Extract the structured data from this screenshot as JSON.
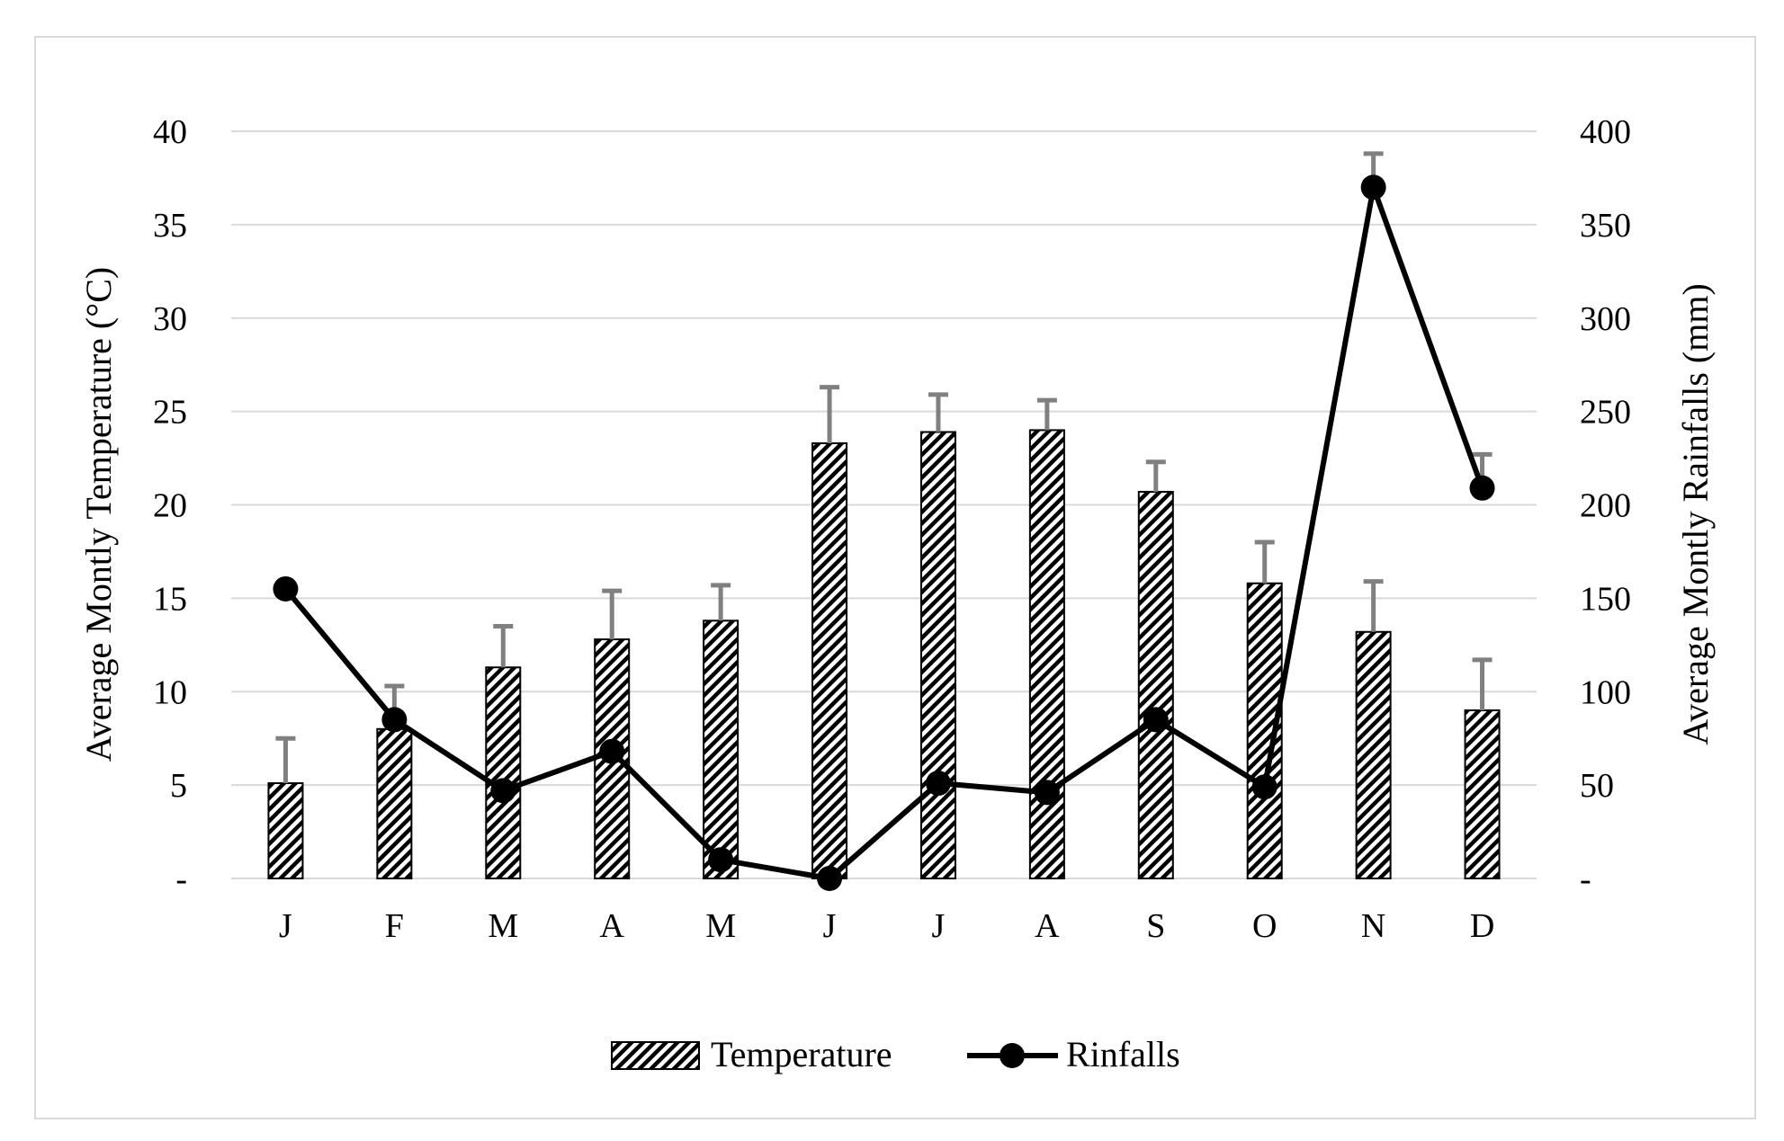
{
  "chart_data": {
    "type": "bar",
    "title": "",
    "categories": [
      "J",
      "F",
      "M",
      "A",
      "M",
      "J",
      "J",
      "A",
      "S",
      "O",
      "N",
      "D"
    ],
    "series": [
      {
        "name": "Temperature",
        "kind": "bar",
        "axis": "left",
        "values": [
          5.1,
          8.0,
          11.3,
          12.8,
          13.8,
          23.3,
          23.9,
          24.0,
          20.7,
          15.8,
          13.2,
          9.0
        ],
        "error_upper": [
          2.4,
          2.3,
          2.2,
          2.6,
          1.9,
          3.0,
          2.0,
          1.6,
          1.6,
          2.2,
          2.7,
          2.7
        ],
        "pattern": "diagonal-hatch"
      },
      {
        "name": "Rinfalls",
        "kind": "line",
        "axis": "right",
        "values": [
          155,
          85,
          47,
          68,
          10,
          0,
          51,
          46,
          85,
          49,
          370,
          209
        ],
        "error_upper": [
          0,
          0,
          0,
          0,
          0,
          0,
          0,
          0,
          0,
          0,
          18,
          18
        ]
      }
    ],
    "ylabel": "Average Montly Temperature (°C)",
    "ylim": [
      0,
      40
    ],
    "yticks": [
      0,
      5,
      10,
      15,
      20,
      25,
      30,
      35,
      40
    ],
    "ytick_labels": [
      "-",
      "5",
      "10",
      "15",
      "20",
      "25",
      "30",
      "35",
      "40"
    ],
    "y2label": "Average Montly Rainfalls (mm)",
    "y2lim": [
      0,
      400
    ],
    "y2ticks": [
      0,
      50,
      100,
      150,
      200,
      250,
      300,
      350,
      400
    ],
    "y2tick_labels": [
      "-",
      "50",
      "100",
      "150",
      "200",
      "250",
      "300",
      "350",
      "400"
    ],
    "xlabel": "",
    "grid": "horizontal",
    "legend_position": "bottom-center",
    "colors": {
      "bar_fill": "#ffffff",
      "bar_stroke": "#000000",
      "hatch": "#000000",
      "error_bar": "#808080",
      "line": "#000000",
      "grid": "#d9d9d9",
      "frame": "#d9d9d9"
    }
  }
}
